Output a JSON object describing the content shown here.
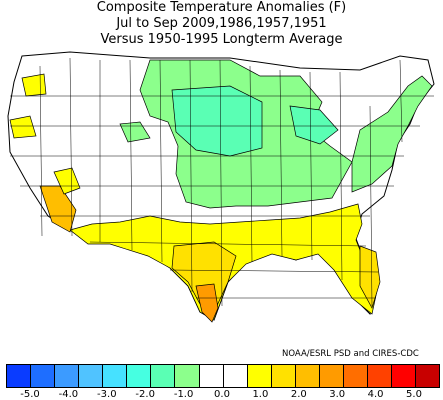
{
  "title": {
    "line1": "Composite Temperature Anomalies (F)",
    "line2": "Jul to Sep  2009,1986,1957,1951",
    "line3": "Versus 1950-1995 Longterm Average"
  },
  "credit": "NOAA/ESRL PSD and CIRES-CDC",
  "colorbar": {
    "colors": [
      "#0a3cff",
      "#1e6eff",
      "#3c9bff",
      "#50c3ff",
      "#46e1ff",
      "#46ffe1",
      "#5affb4",
      "#8cff8c",
      "#ffffff",
      "#ffffff",
      "#ffff00",
      "#ffe100",
      "#ffbe00",
      "#ff9b00",
      "#ff6e00",
      "#ff4100",
      "#ff0000",
      "#c80000"
    ],
    "ticks": [
      "-5.0",
      "-4.0",
      "-3.0",
      "-2.0",
      "-1.0",
      "0.0",
      "1.0",
      "2.0",
      "3.0",
      "4.0",
      "5.0"
    ]
  },
  "map": {
    "legend_colors": {
      "neutral": "#ffffff",
      "cool_slight": "#8cff8c",
      "cool_moderate": "#5affb4",
      "warm_slight": "#ffff00",
      "warm_moderate": "#ffe100",
      "warm_strong": "#ffbe00",
      "warm_stronger": "#ff9b00"
    },
    "border_color": "#000000"
  }
}
